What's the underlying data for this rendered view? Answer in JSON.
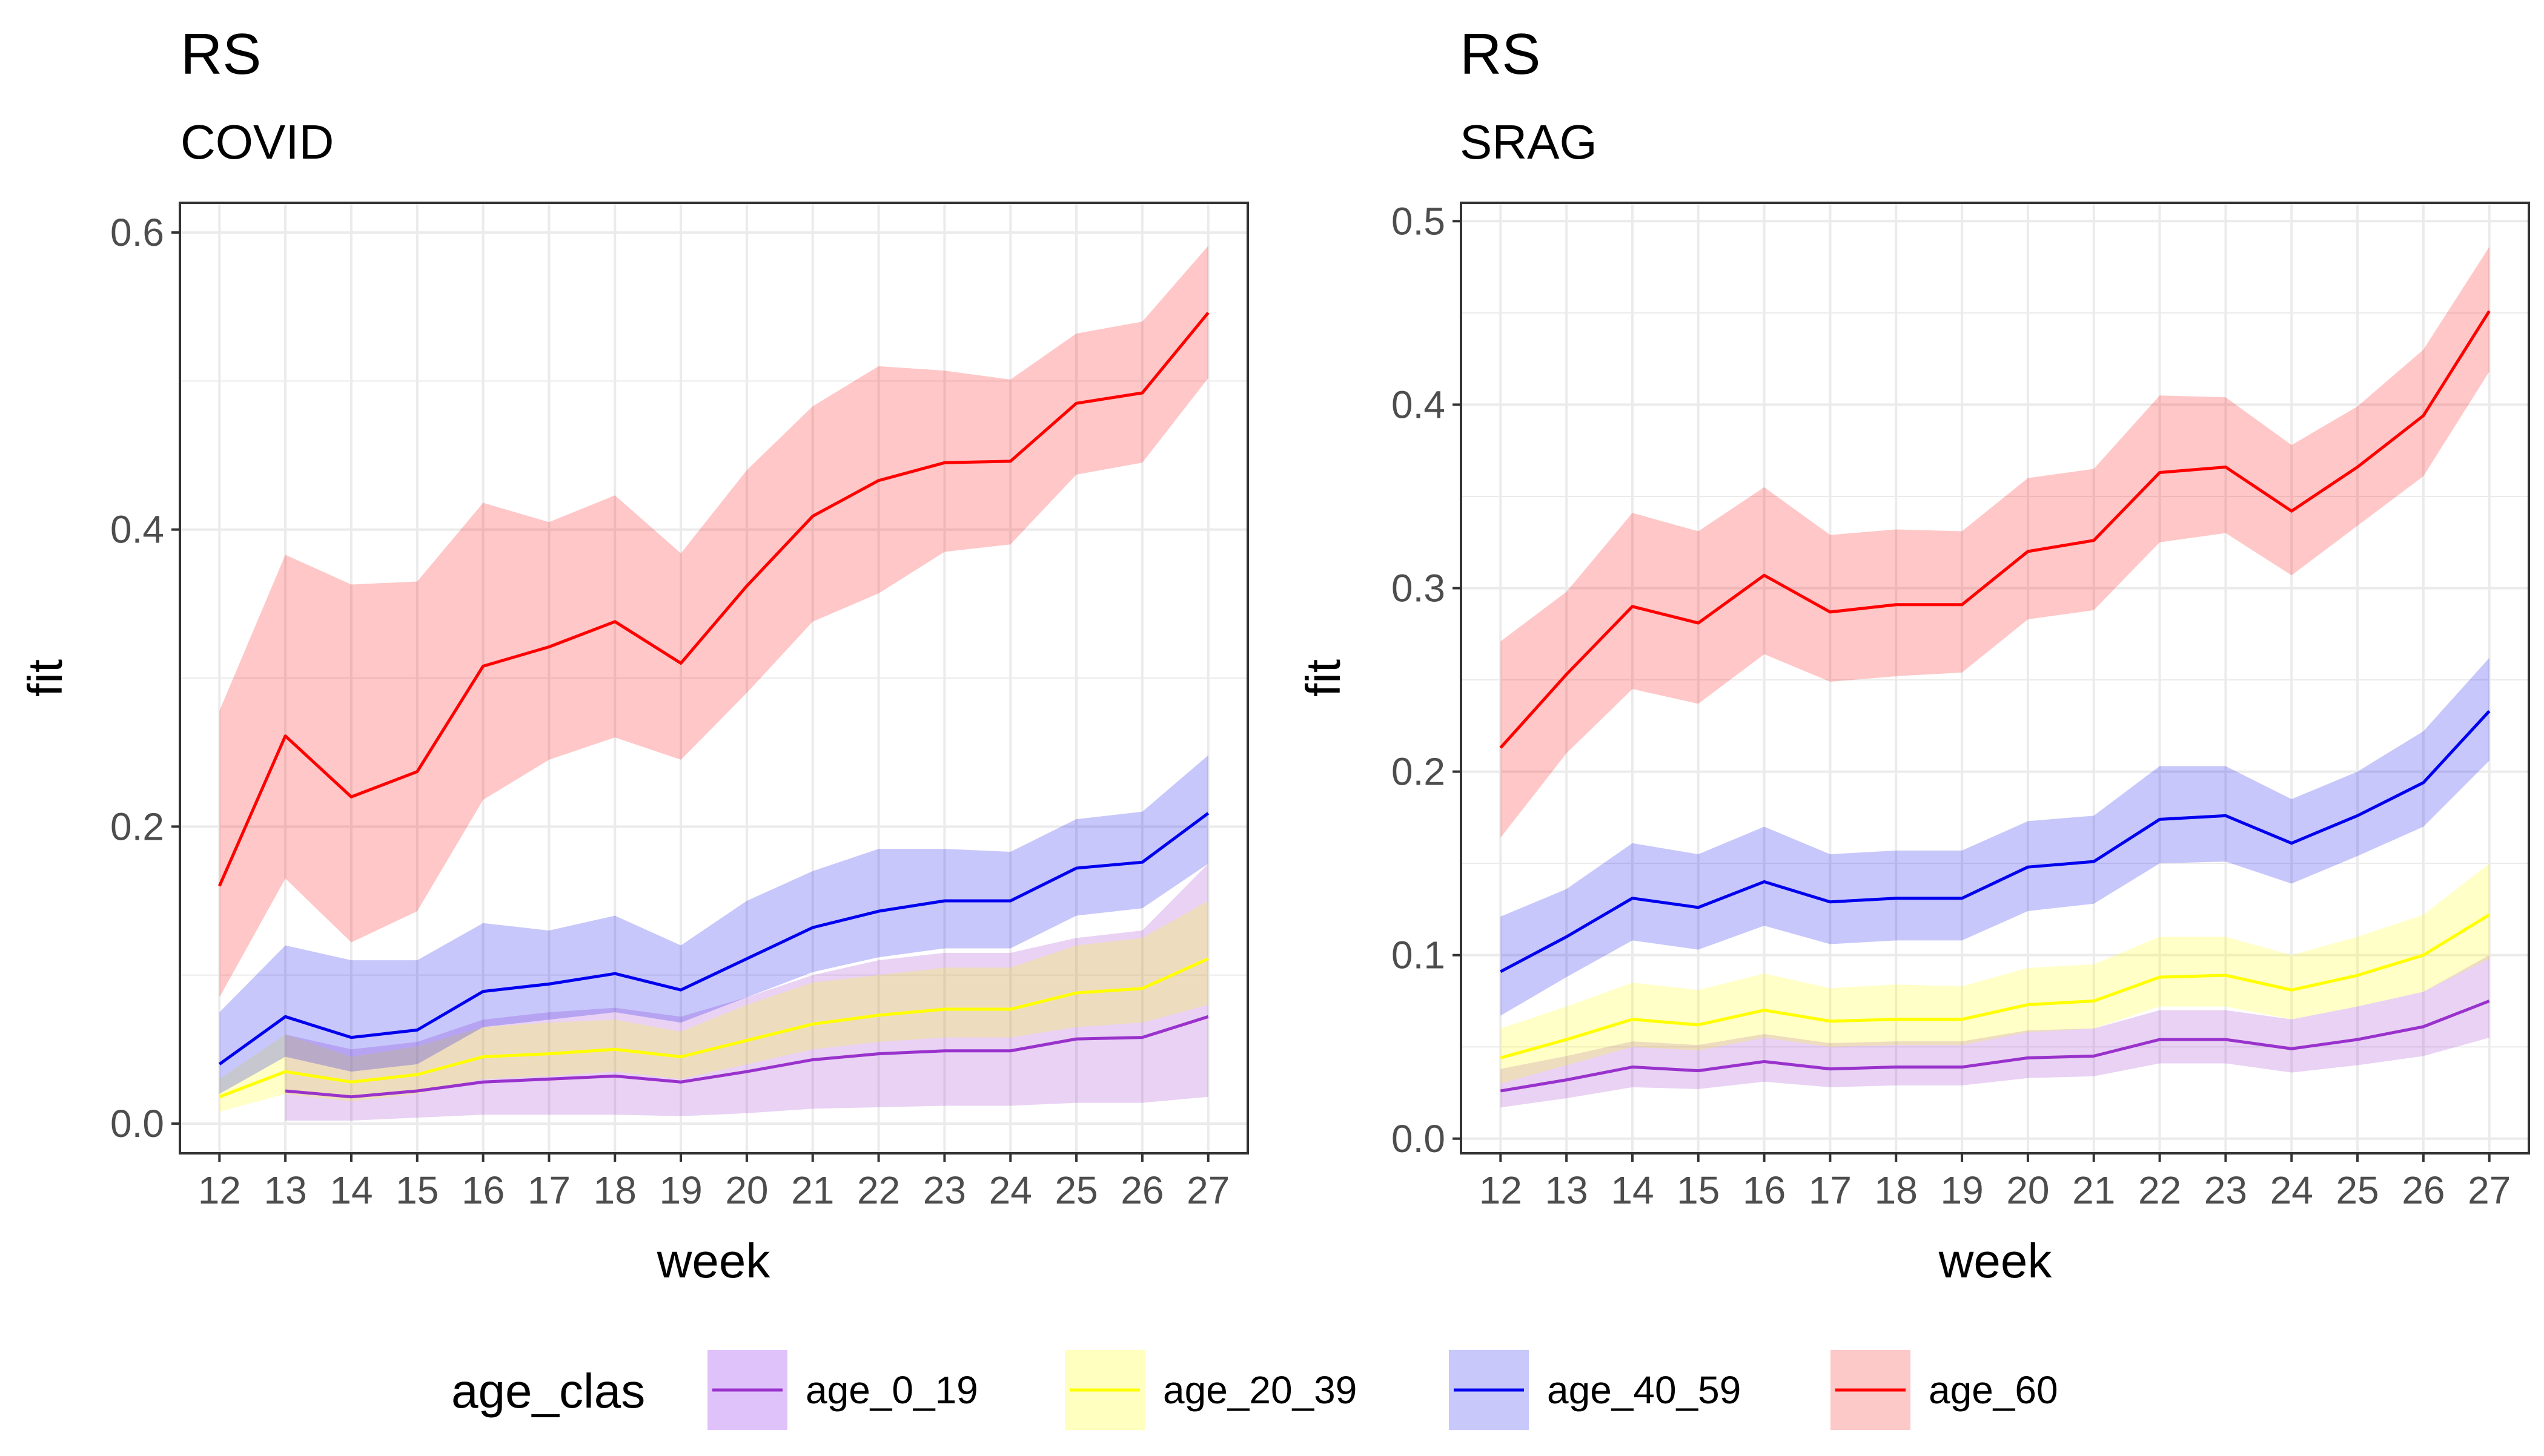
{
  "chart_data": [
    {
      "type": "line",
      "title": "RS",
      "subtitle": "COVID",
      "xlabel": "week",
      "ylabel": "fit",
      "x": [
        12,
        13,
        14,
        15,
        16,
        17,
        18,
        19,
        20,
        21,
        22,
        23,
        24,
        25,
        26,
        27
      ],
      "xlim": [
        11.4,
        27.6
      ],
      "ylim": [
        -0.02,
        0.62
      ],
      "yticks": [
        "0.0",
        "0.2",
        "0.4",
        "0.6"
      ],
      "series": [
        {
          "name": "age_0_19",
          "x": [
            13,
            14,
            15,
            16,
            17,
            18,
            19,
            20,
            21,
            22,
            23,
            24,
            25,
            26,
            27
          ],
          "values": [
            0.022,
            0.018,
            0.022,
            0.028,
            0.03,
            0.032,
            0.028,
            0.035,
            0.043,
            0.047,
            0.049,
            0.049,
            0.057,
            0.058,
            0.072
          ],
          "lower": [
            0.002,
            0.002,
            0.004,
            0.006,
            0.006,
            0.006,
            0.005,
            0.007,
            0.01,
            0.011,
            0.012,
            0.012,
            0.014,
            0.014,
            0.018
          ],
          "upper": [
            0.06,
            0.05,
            0.055,
            0.07,
            0.075,
            0.078,
            0.072,
            0.085,
            0.1,
            0.11,
            0.115,
            0.115,
            0.125,
            0.13,
            0.175
          ]
        },
        {
          "name": "age_20_39",
          "x": [
            12,
            13,
            14,
            15,
            16,
            17,
            18,
            19,
            20,
            21,
            22,
            23,
            24,
            25,
            26,
            27
          ],
          "values": [
            0.018,
            0.035,
            0.028,
            0.033,
            0.045,
            0.047,
            0.05,
            0.045,
            0.056,
            0.067,
            0.073,
            0.077,
            0.077,
            0.088,
            0.091,
            0.111
          ],
          "lower": [
            0.008,
            0.02,
            0.015,
            0.02,
            0.03,
            0.032,
            0.035,
            0.03,
            0.04,
            0.05,
            0.055,
            0.058,
            0.058,
            0.065,
            0.068,
            0.08
          ],
          "upper": [
            0.03,
            0.06,
            0.045,
            0.052,
            0.065,
            0.068,
            0.07,
            0.062,
            0.08,
            0.095,
            0.1,
            0.105,
            0.105,
            0.12,
            0.125,
            0.15
          ]
        },
        {
          "name": "age_40_59",
          "x": [
            12,
            13,
            14,
            15,
            16,
            17,
            18,
            19,
            20,
            21,
            22,
            23,
            24,
            25,
            26,
            27
          ],
          "values": [
            0.04,
            0.072,
            0.058,
            0.063,
            0.089,
            0.094,
            0.101,
            0.09,
            0.111,
            0.132,
            0.143,
            0.15,
            0.15,
            0.172,
            0.176,
            0.209
          ],
          "lower": [
            0.02,
            0.045,
            0.035,
            0.04,
            0.065,
            0.07,
            0.075,
            0.068,
            0.085,
            0.102,
            0.112,
            0.118,
            0.118,
            0.14,
            0.145,
            0.175
          ],
          "upper": [
            0.075,
            0.12,
            0.11,
            0.11,
            0.135,
            0.13,
            0.14,
            0.12,
            0.15,
            0.17,
            0.185,
            0.185,
            0.183,
            0.205,
            0.21,
            0.248
          ]
        },
        {
          "name": "age_60",
          "x": [
            12,
            13,
            14,
            15,
            16,
            17,
            18,
            19,
            20,
            21,
            22,
            23,
            24,
            25,
            26,
            27
          ],
          "values": [
            0.16,
            0.261,
            0.22,
            0.237,
            0.308,
            0.321,
            0.338,
            0.31,
            0.362,
            0.409,
            0.433,
            0.445,
            0.446,
            0.485,
            0.492,
            0.546
          ],
          "lower": [
            0.085,
            0.165,
            0.122,
            0.143,
            0.218,
            0.245,
            0.26,
            0.245,
            0.29,
            0.338,
            0.357,
            0.385,
            0.39,
            0.437,
            0.445,
            0.502
          ],
          "upper": [
            0.278,
            0.383,
            0.363,
            0.365,
            0.418,
            0.405,
            0.423,
            0.384,
            0.44,
            0.483,
            0.51,
            0.507,
            0.501,
            0.532,
            0.54,
            0.591
          ]
        }
      ]
    },
    {
      "type": "line",
      "title": "RS",
      "subtitle": "SRAG",
      "xlabel": "week",
      "ylabel": "fit",
      "x": [
        12,
        13,
        14,
        15,
        16,
        17,
        18,
        19,
        20,
        21,
        22,
        23,
        24,
        25,
        26,
        27
      ],
      "xlim": [
        11.4,
        27.6
      ],
      "ylim": [
        -0.008,
        0.51
      ],
      "yticks": [
        "0.0",
        "0.1",
        "0.2",
        "0.3",
        "0.4",
        "0.5"
      ],
      "series": [
        {
          "name": "age_0_19",
          "x": [
            12,
            13,
            14,
            15,
            16,
            17,
            18,
            19,
            20,
            21,
            22,
            23,
            24,
            25,
            26,
            27
          ],
          "values": [
            0.026,
            0.032,
            0.039,
            0.037,
            0.042,
            0.038,
            0.039,
            0.039,
            0.044,
            0.045,
            0.054,
            0.054,
            0.049,
            0.054,
            0.061,
            0.075
          ],
          "lower": [
            0.017,
            0.022,
            0.028,
            0.027,
            0.031,
            0.028,
            0.029,
            0.029,
            0.033,
            0.034,
            0.041,
            0.041,
            0.036,
            0.04,
            0.045,
            0.055
          ],
          "upper": [
            0.038,
            0.045,
            0.053,
            0.051,
            0.057,
            0.052,
            0.053,
            0.053,
            0.059,
            0.06,
            0.07,
            0.07,
            0.065,
            0.072,
            0.08,
            0.1
          ]
        },
        {
          "name": "age_20_39",
          "x": [
            12,
            13,
            14,
            15,
            16,
            17,
            18,
            19,
            20,
            21,
            22,
            23,
            24,
            25,
            26,
            27
          ],
          "values": [
            0.044,
            0.054,
            0.065,
            0.062,
            0.07,
            0.064,
            0.065,
            0.065,
            0.073,
            0.075,
            0.088,
            0.089,
            0.081,
            0.089,
            0.1,
            0.122
          ],
          "lower": [
            0.03,
            0.04,
            0.05,
            0.048,
            0.055,
            0.05,
            0.051,
            0.051,
            0.058,
            0.06,
            0.072,
            0.072,
            0.065,
            0.072,
            0.08,
            0.098
          ],
          "upper": [
            0.06,
            0.072,
            0.085,
            0.081,
            0.09,
            0.082,
            0.084,
            0.083,
            0.093,
            0.095,
            0.11,
            0.11,
            0.1,
            0.11,
            0.122,
            0.15
          ]
        },
        {
          "name": "age_40_59",
          "x": [
            12,
            13,
            14,
            15,
            16,
            17,
            18,
            19,
            20,
            21,
            22,
            23,
            24,
            25,
            26,
            27
          ],
          "values": [
            0.091,
            0.11,
            0.131,
            0.126,
            0.14,
            0.129,
            0.131,
            0.131,
            0.148,
            0.151,
            0.174,
            0.176,
            0.161,
            0.176,
            0.194,
            0.233
          ],
          "lower": [
            0.067,
            0.088,
            0.108,
            0.103,
            0.116,
            0.106,
            0.108,
            0.108,
            0.124,
            0.128,
            0.15,
            0.151,
            0.139,
            0.154,
            0.17,
            0.206
          ],
          "upper": [
            0.121,
            0.136,
            0.161,
            0.155,
            0.17,
            0.155,
            0.157,
            0.157,
            0.173,
            0.176,
            0.203,
            0.203,
            0.185,
            0.2,
            0.222,
            0.262
          ]
        },
        {
          "name": "age_60",
          "x": [
            12,
            13,
            14,
            15,
            16,
            17,
            18,
            19,
            20,
            21,
            22,
            23,
            24,
            25,
            26,
            27
          ],
          "values": [
            0.213,
            0.253,
            0.29,
            0.281,
            0.307,
            0.287,
            0.291,
            0.291,
            0.32,
            0.326,
            0.363,
            0.366,
            0.342,
            0.366,
            0.394,
            0.451
          ],
          "lower": [
            0.164,
            0.21,
            0.245,
            0.237,
            0.264,
            0.249,
            0.252,
            0.254,
            0.283,
            0.288,
            0.325,
            0.33,
            0.307,
            0.334,
            0.361,
            0.418
          ],
          "upper": [
            0.271,
            0.298,
            0.341,
            0.331,
            0.355,
            0.329,
            0.332,
            0.331,
            0.36,
            0.365,
            0.405,
            0.404,
            0.378,
            0.399,
            0.43,
            0.486
          ]
        }
      ]
    }
  ],
  "legend": {
    "title": "age_clas",
    "items": [
      {
        "label": "age_0_19",
        "line": "#9932cc",
        "fill": "#e0c2fa"
      },
      {
        "label": "age_20_39",
        "line": "#ffff00",
        "fill": "#ffffc0"
      },
      {
        "label": "age_40_59",
        "line": "#0000ee",
        "fill": "#c8c8fa"
      },
      {
        "label": "age_60",
        "line": "#ff0000",
        "fill": "#fcc8c8"
      }
    ]
  },
  "colors": {
    "age_0_19": "#9932cc",
    "age_20_39": "#ffff00",
    "age_40_59": "#0000ee",
    "age_60": "#ff0000"
  }
}
